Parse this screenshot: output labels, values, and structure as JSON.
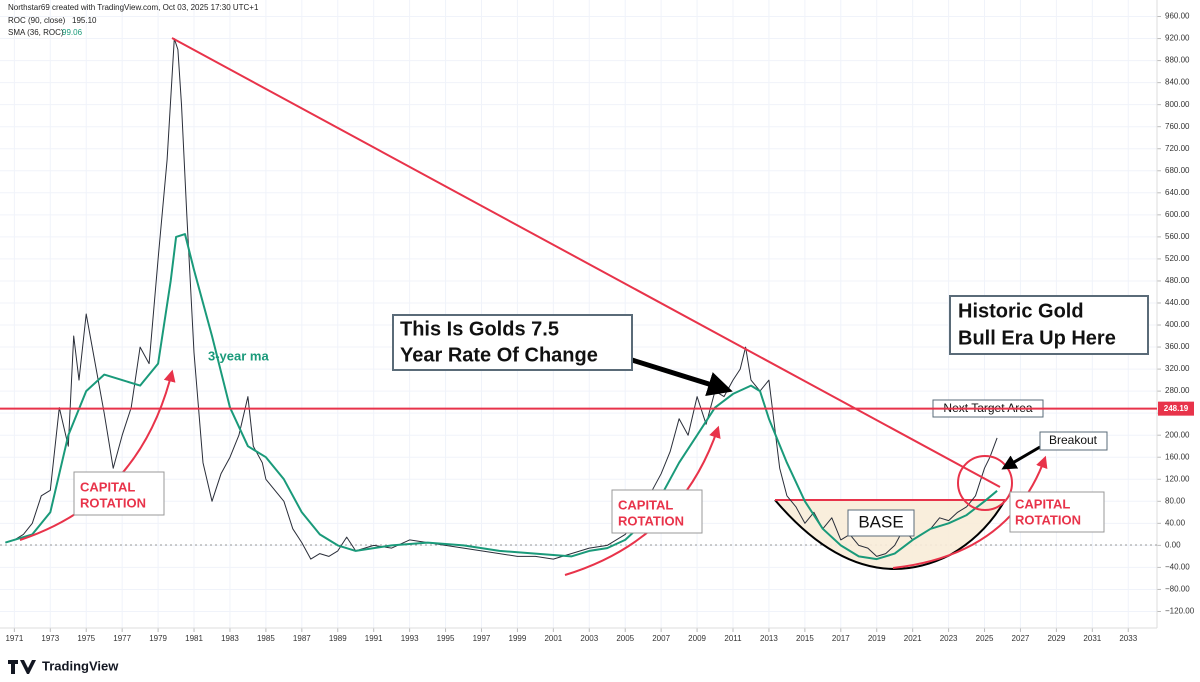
{
  "header": {
    "credit": "Northstar69 created with TradingView.com, Oct 03, 2025 17:30 UTC+1"
  },
  "chart_data": {
    "type": "line",
    "series": [
      {
        "name": "ROC (90, close)",
        "last_label": "195.10",
        "color": "#2a2e39",
        "x": [
          1970.5,
          1971,
          1971.5,
          1972,
          1972.5,
          1973,
          1973.5,
          1974,
          1974.3,
          1974.6,
          1975,
          1975.5,
          1976,
          1976.5,
          1977,
          1977.5,
          1978,
          1978.5,
          1979,
          1979.5,
          1979.9,
          1980.1,
          1980.3,
          1980.6,
          1981,
          1981.5,
          1982,
          1982.5,
          1983,
          1983.5,
          1984,
          1984.3,
          1984.8,
          1985,
          1986,
          1986.5,
          1987,
          1987.5,
          1988,
          1988.5,
          1989,
          1989.5,
          1990,
          1991,
          1992,
          1993,
          1994,
          1995,
          1996,
          1997,
          1998,
          1999,
          2000,
          2001,
          2002,
          2003,
          2004,
          2005,
          2006,
          2006.5,
          2007,
          2007.5,
          2008,
          2008.5,
          2009,
          2009.5,
          2010,
          2010.5,
          2011,
          2011.4,
          2011.7,
          2012,
          2012.5,
          2013,
          2013.3,
          2013.6,
          2014,
          2014.5,
          2015,
          2015.5,
          2016,
          2016.5,
          2017,
          2017.5,
          2018,
          2018.5,
          2019,
          2019.5,
          2020,
          2020.5,
          2021,
          2022,
          2022.5,
          2023,
          2023.5,
          2024,
          2024.5,
          2025,
          2025.3,
          2025.7
        ],
        "values": [
          5,
          10,
          20,
          40,
          90,
          100,
          250,
          180,
          380,
          300,
          420,
          330,
          240,
          140,
          200,
          250,
          360,
          330,
          520,
          700,
          920,
          900,
          800,
          600,
          350,
          150,
          80,
          130,
          160,
          200,
          270,
          180,
          150,
          120,
          80,
          30,
          5,
          -25,
          -15,
          -20,
          -10,
          15,
          -10,
          0,
          -5,
          10,
          5,
          0,
          -5,
          -10,
          -15,
          -20,
          -20,
          -25,
          -15,
          -5,
          0,
          20,
          60,
          100,
          130,
          170,
          230,
          200,
          270,
          220,
          280,
          270,
          300,
          320,
          360,
          300,
          280,
          300,
          220,
          140,
          90,
          70,
          40,
          60,
          30,
          50,
          10,
          20,
          0,
          -5,
          -20,
          -15,
          0,
          30,
          10,
          30,
          50,
          45,
          60,
          70,
          90,
          140,
          160,
          195
        ]
      },
      {
        "name": "SMA (36, ROC)",
        "last_label": "99.06",
        "color": "#1a9a7a",
        "x": [
          1970.5,
          1972,
          1973,
          1974,
          1975,
          1976,
          1977,
          1978,
          1979,
          1979.7,
          1980,
          1980.5,
          1981,
          1982,
          1983,
          1984,
          1985,
          1986,
          1987,
          1988,
          1989,
          1990,
          1992,
          1994,
          1996,
          1998,
          2000,
          2002,
          2003,
          2004,
          2005,
          2006,
          2007,
          2008,
          2009,
          2010,
          2011,
          2012,
          2012.5,
          2013,
          2014,
          2015,
          2016,
          2017,
          2018,
          2019,
          2020,
          2021,
          2022,
          2023,
          2024,
          2025,
          2025.7
        ],
        "values": [
          5,
          20,
          60,
          200,
          280,
          310,
          300,
          290,
          330,
          480,
          560,
          565,
          500,
          380,
          250,
          180,
          160,
          120,
          60,
          20,
          0,
          -10,
          0,
          5,
          0,
          -10,
          -15,
          -20,
          -10,
          -5,
          10,
          40,
          90,
          150,
          200,
          250,
          275,
          290,
          280,
          230,
          150,
          80,
          30,
          0,
          -20,
          -25,
          -15,
          10,
          30,
          40,
          55,
          80,
          99
        ]
      }
    ],
    "xlim": [
      1970.2,
      2034.6
    ],
    "xticks": [
      1971,
      1973,
      1975,
      1977,
      1979,
      1981,
      1983,
      1985,
      1987,
      1989,
      1991,
      1993,
      1995,
      1997,
      1999,
      2001,
      2003,
      2005,
      2007,
      2009,
      2011,
      2013,
      2015,
      2017,
      2019,
      2021,
      2023,
      2025,
      2027,
      2029,
      2031,
      2033
    ],
    "ylim": [
      -150,
      990
    ],
    "yticks": [
      {
        "value": -120,
        "label": "−120.00"
      },
      {
        "value": -80,
        "label": "−80.00"
      },
      {
        "value": -40,
        "label": "−40.00"
      },
      {
        "value": 0,
        "label": "0.00"
      },
      {
        "value": 40,
        "label": "40.00"
      },
      {
        "value": 80,
        "label": "80.00"
      },
      {
        "value": 120,
        "label": "120.00"
      },
      {
        "value": 160,
        "label": "160.00"
      },
      {
        "value": 200,
        "label": "200.00"
      },
      {
        "value": 240,
        "label": "240.00"
      },
      {
        "value": 280,
        "label": "280.00"
      },
      {
        "value": 320,
        "label": "320.00"
      },
      {
        "value": 360,
        "label": "360.00"
      },
      {
        "value": 400,
        "label": "400.00"
      },
      {
        "value": 440,
        "label": "440.00"
      },
      {
        "value": 480,
        "label": "480.00"
      },
      {
        "value": 520,
        "label": "520.00"
      },
      {
        "value": 560,
        "label": "560.00"
      },
      {
        "value": 600,
        "label": "600.00"
      },
      {
        "value": 640,
        "label": "640.00"
      },
      {
        "value": 680,
        "label": "680.00"
      },
      {
        "value": 720,
        "label": "720.00"
      },
      {
        "value": 760,
        "label": "760.00"
      },
      {
        "value": 800,
        "label": "800.00"
      },
      {
        "value": 840,
        "label": "840.00"
      },
      {
        "value": 880,
        "label": "880.00"
      },
      {
        "value": 920,
        "label": "920.00"
      },
      {
        "value": 960,
        "label": "960.00"
      }
    ],
    "hline": {
      "value": 248.19,
      "label": "248.19",
      "color": "#e8334a"
    },
    "annotations": {
      "rotation": [
        "CAPITAL",
        "ROTATION"
      ],
      "ma": "3-year ma",
      "roc_note": [
        "This Is Golds 7.5",
        "Year Rate Of Change"
      ],
      "historic": [
        "Historic Gold",
        "Bull Era Up Here"
      ],
      "target": "Next Target Area",
      "breakout": "Breakout",
      "base": "BASE"
    },
    "brand": "TradingView"
  }
}
